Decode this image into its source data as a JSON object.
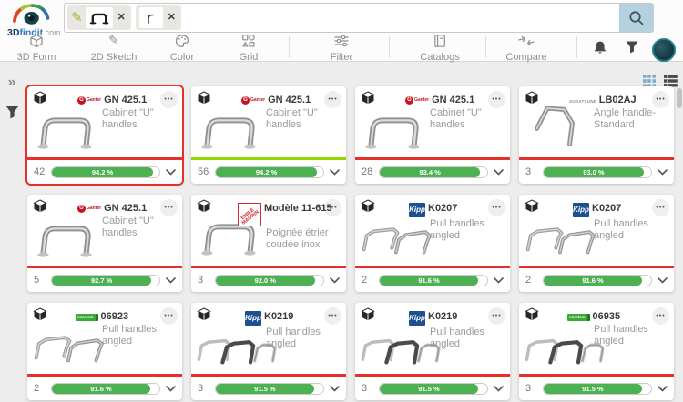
{
  "header": {
    "logo": {
      "text_3d": "3D",
      "text_findit": "findit",
      "text_com": ".com"
    },
    "search": {
      "chips": [
        {
          "icon": "sketch-pencil-icon"
        },
        {
          "thumb": "u-handle-sketch"
        },
        {
          "thumb": "corner-curve-sketch"
        }
      ]
    },
    "toolbar": {
      "items": [
        {
          "label": "3D Form",
          "icon": "cube-icon"
        },
        {
          "label": "2D Sketch",
          "icon": "pencil-icon"
        },
        {
          "label": "Color",
          "icon": "palette-icon"
        },
        {
          "label": "Grid",
          "icon": "shapes-icon"
        },
        {
          "label": "Filter",
          "icon": "sliders-icon"
        },
        {
          "label": "Catalogs",
          "icon": "book-icon"
        },
        {
          "label": "Compare",
          "icon": "compare-arrows-icon"
        }
      ]
    },
    "right_icons": [
      {
        "icon": "bell-icon"
      },
      {
        "icon": "funnel-icon"
      },
      {
        "icon": "user-avatar"
      }
    ]
  },
  "sidebar": {
    "expand_icon": "chevrons-right-icon",
    "filter_icon": "funnel-icon"
  },
  "view_toggle": {
    "grid_active": true,
    "list_active": false
  },
  "icons": {
    "more_glyph": "•••",
    "expand_glyph": "»",
    "pencil_glyph": "✎",
    "close_glyph": "✕"
  },
  "colors": {
    "accent_red": "#e8302a",
    "accent_lime": "#94d500",
    "progress_green": "#4db153",
    "selection_red": "#e8302a",
    "search_button_bg": "#b3d1df",
    "grid_icon_blue": "#7fa9c9"
  },
  "cards": [
    {
      "brand": "Ganter",
      "brand_mark": "G",
      "brand_label": "Ganter",
      "title": "GN 425.1",
      "subtitle": "Cabinet \"U\" handles",
      "count": "42",
      "match": "94.2 %",
      "pct": 94.2,
      "accent_color": "#e8302a",
      "selected": true,
      "image": "u-handle"
    },
    {
      "brand": "Ganter",
      "brand_mark": "G",
      "brand_label": "Ganter",
      "title": "GN 425.1",
      "subtitle": "Cabinet \"U\" handles",
      "count": "56",
      "match": "94.2 %",
      "pct": 94.2,
      "accent_color": "#94d500",
      "selected": false,
      "image": "u-handle"
    },
    {
      "brand": "Ganter",
      "brand_mark": "G",
      "brand_label": "Ganter",
      "title": "GN 425.1",
      "subtitle": "Cabinet \"U\" handles",
      "count": "28",
      "match": "93.4 %",
      "pct": 93.4,
      "accent_color": "#e8302a",
      "selected": false,
      "image": "u-handle"
    },
    {
      "brand": "Sugatsune",
      "brand_label": "SUGATSUNE",
      "title": "LB02AJ",
      "subtitle": "Angle handle- Standard",
      "count": "3",
      "match": "93.0 %",
      "pct": 93.0,
      "accent_color": "#e8302a",
      "selected": false,
      "image": "angle-handle"
    },
    {
      "brand": "Ganter",
      "brand_mark": "G",
      "brand_label": "Ganter",
      "title": "GN 425.1",
      "subtitle": "Cabinet \"U\" handles",
      "count": "5",
      "match": "92.7 %",
      "pct": 92.7,
      "accent_color": "#e8302a",
      "selected": false,
      "image": "u-handle"
    },
    {
      "brand": "Emile Maurin",
      "brand_label": "EMILE MAURIN",
      "title": "Modèle 11-615",
      "subtitle": "Poignée étrier coudée inox",
      "count": "3",
      "match": "92.0 %",
      "pct": 92.0,
      "accent_color": "#e8302a",
      "selected": false,
      "image": "u-handle"
    },
    {
      "brand": "Kipp",
      "brand_label": "Kipp",
      "title": "K0207",
      "subtitle": "Pull handles angled",
      "count": "2",
      "match": "91.6 %",
      "pct": 91.6,
      "accent_color": "#e8302a",
      "selected": false,
      "image": "pull-pair"
    },
    {
      "brand": "Kipp",
      "brand_label": "Kipp",
      "title": "K0207",
      "subtitle": "Pull handles angled",
      "count": "2",
      "match": "91.6 %",
      "pct": 91.6,
      "accent_color": "#e8302a",
      "selected": false,
      "image": "pull-pair"
    },
    {
      "brand": "norelem",
      "brand_label": "norelem",
      "title": "06923",
      "subtitle": "Pull handles angled",
      "count": "2",
      "match": "91.6 %",
      "pct": 91.6,
      "accent_color": "#e8302a",
      "selected": false,
      "image": "pull-pair"
    },
    {
      "brand": "Kipp",
      "brand_label": "Kipp",
      "title": "K0219",
      "subtitle": "Pull handles angled",
      "count": "3",
      "match": "91.5 %",
      "pct": 91.5,
      "accent_color": "#e8302a",
      "selected": false,
      "image": "pull-trio"
    },
    {
      "brand": "Kipp",
      "brand_label": "Kipp",
      "title": "K0219",
      "subtitle": "Pull handles angled",
      "count": "3",
      "match": "91.5 %",
      "pct": 91.5,
      "accent_color": "#e8302a",
      "selected": false,
      "image": "pull-trio"
    },
    {
      "brand": "norelem",
      "brand_label": "norelem",
      "title": "06935",
      "subtitle": "Pull handles angled",
      "count": "3",
      "match": "91.5 %",
      "pct": 91.5,
      "accent_color": "#e8302a",
      "selected": false,
      "image": "pull-trio"
    }
  ]
}
